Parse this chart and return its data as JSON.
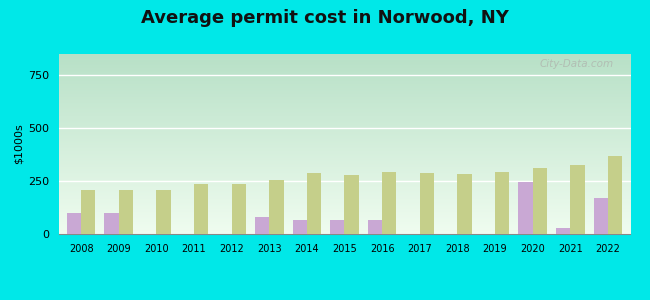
{
  "title": "Average permit cost in Norwood, NY",
  "ylabel": "$1000s",
  "years": [
    2008,
    2009,
    2010,
    2011,
    2012,
    2013,
    2014,
    2015,
    2016,
    2017,
    2018,
    2019,
    2020,
    2021,
    2022
  ],
  "norwood": [
    100,
    100,
    0,
    0,
    0,
    80,
    65,
    65,
    65,
    0,
    0,
    0,
    245,
    30,
    170
  ],
  "ny_avg": [
    210,
    210,
    210,
    235,
    235,
    255,
    290,
    280,
    295,
    290,
    285,
    295,
    310,
    325,
    370
  ],
  "norwood_color": "#c9a8d4",
  "ny_avg_color": "#c5cf8a",
  "outer_bg": "#00e8e8",
  "ylim": [
    0,
    850
  ],
  "yticks": [
    0,
    250,
    500,
    750
  ],
  "bar_width": 0.38,
  "title_fontsize": 13,
  "bg_color_top_left": "#b8dfc8",
  "bg_color_bottom_right": "#f0fff0"
}
